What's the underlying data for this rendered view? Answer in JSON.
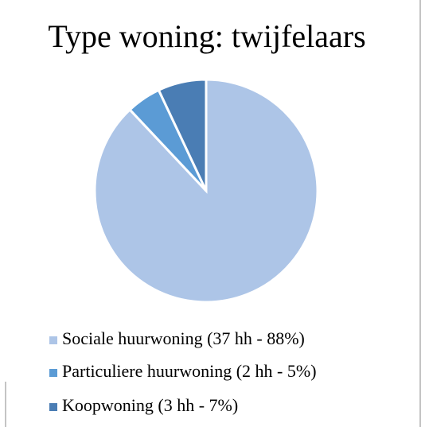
{
  "chart_data": {
    "type": "pie",
    "title": "Type woning: twijfelaars",
    "categories": [
      "Sociale huurwoning (37 hh - 88%)",
      "Particuliere huurwoning (2 hh - 5%)",
      "Koopwoning (3 hh - 7%)"
    ],
    "values": [
      88,
      5,
      7
    ],
    "colors": [
      "#adc5e7",
      "#5b9bd5",
      "#4a7db4"
    ],
    "legend": "bottom"
  }
}
